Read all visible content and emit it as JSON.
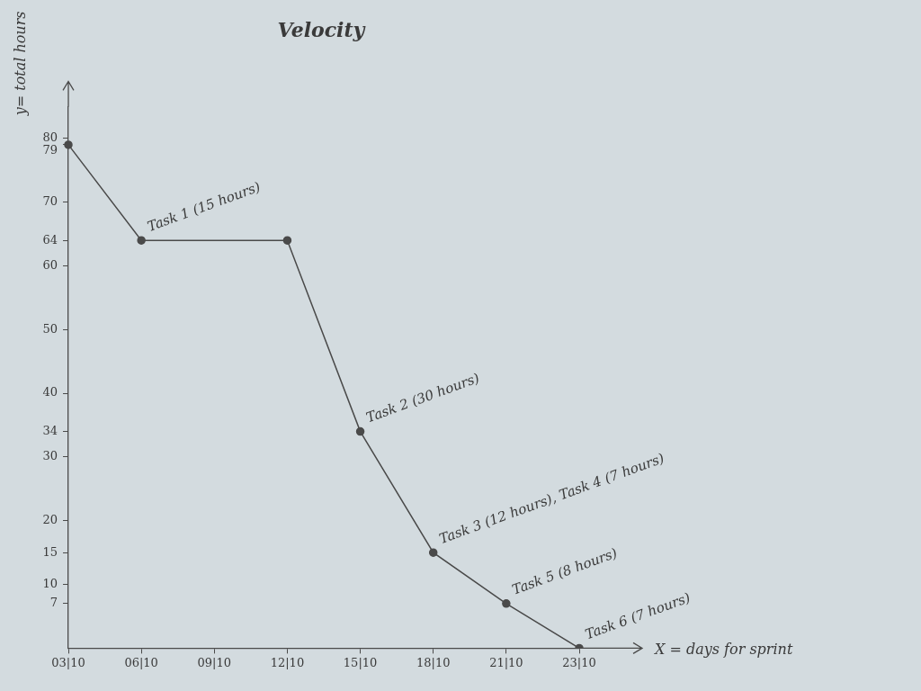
{
  "chart_data": {
    "type": "line",
    "title": "Velocity",
    "x_label": "X = days for sprint",
    "y_label": "y= total hours",
    "categories": [
      "03|10",
      "06|10",
      "09|10",
      "12|10",
      "15|10",
      "18|10",
      "21|10",
      "23|10"
    ],
    "values": [
      79,
      64,
      null,
      64,
      34,
      15,
      7,
      0
    ],
    "color": "#4a4a4a",
    "marker": "circle",
    "ylim": [
      0,
      85
    ],
    "yticks": [
      7,
      10,
      15,
      20,
      30,
      34,
      40,
      50,
      60,
      64,
      70,
      79,
      80
    ],
    "grid": false,
    "annotations": [
      {
        "x": "06|10",
        "text": "Task 1 (15 hours)"
      },
      {
        "x": "15|10",
        "text": "Task 2 (30 hours)"
      },
      {
        "x": "18|10",
        "text": "Task 3 (12 hours), Task 4 (7 hours)"
      },
      {
        "x": "21|10",
        "text": "Task 5 (8 hours)"
      },
      {
        "x": "23|10",
        "text": "Task 6 (7 hours)"
      }
    ]
  }
}
